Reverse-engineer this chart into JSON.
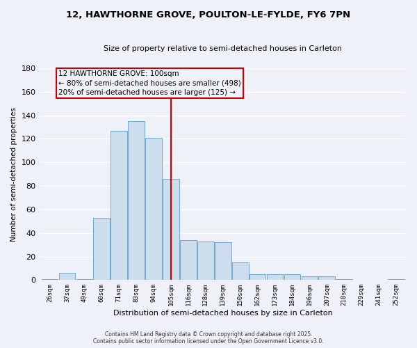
{
  "title_line1": "12, HAWTHORNE GROVE, POULTON-LE-FYLDE, FY6 7PN",
  "title_line2": "Size of property relative to semi-detached houses in Carleton",
  "xlabel": "Distribution of semi-detached houses by size in Carleton",
  "ylabel": "Number of semi-detached properties",
  "categories": [
    "26sqm",
    "37sqm",
    "49sqm",
    "60sqm",
    "71sqm",
    "83sqm",
    "94sqm",
    "105sqm",
    "116sqm",
    "128sqm",
    "139sqm",
    "150sqm",
    "162sqm",
    "173sqm",
    "184sqm",
    "196sqm",
    "207sqm",
    "218sqm",
    "229sqm",
    "241sqm",
    "252sqm"
  ],
  "values": [
    1,
    6,
    1,
    53,
    127,
    135,
    121,
    86,
    34,
    33,
    32,
    15,
    5,
    5,
    5,
    3,
    3,
    1,
    0,
    0,
    1
  ],
  "bar_color": "#ccdded",
  "bar_edge_color": "#6fa8cc",
  "vline_index": 7,
  "vline_color": "#cc0000",
  "box_label_line1": "12 HAWTHORNE GROVE: 100sqm",
  "box_label_line2": "← 80% of semi-detached houses are smaller (498)",
  "box_label_line3": "20% of semi-detached houses are larger (125) →",
  "ylim": [
    0,
    180
  ],
  "yticks": [
    0,
    20,
    40,
    60,
    80,
    100,
    120,
    140,
    160,
    180
  ],
  "footer_line1": "Contains HM Land Registry data © Crown copyright and database right 2025.",
  "footer_line2": "Contains public sector information licensed under the Open Government Licence v3.0.",
  "background_color": "#eef2f8",
  "grid_color": "#ffffff"
}
